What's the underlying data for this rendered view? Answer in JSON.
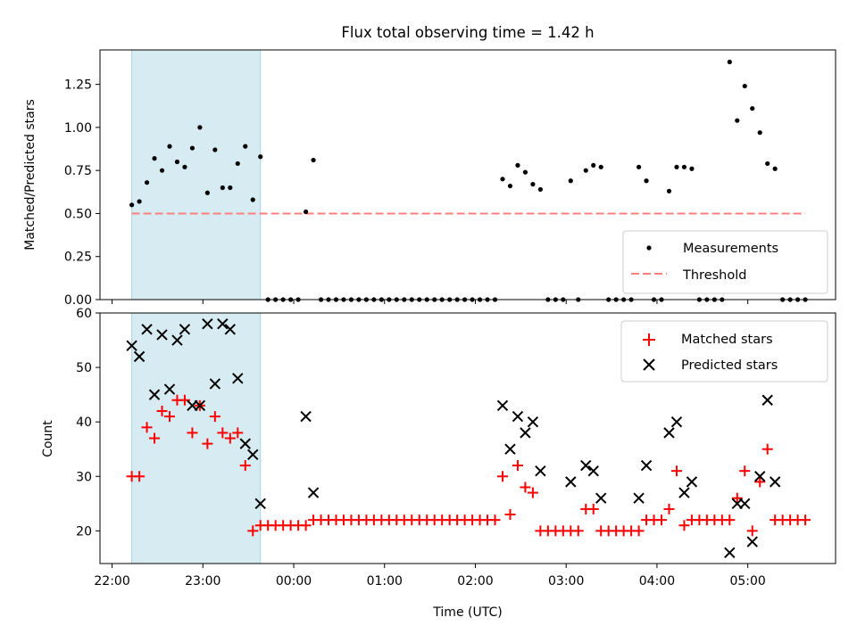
{
  "chart_data": [
    {
      "type": "scatter",
      "title": "Flux total observing time = 1.42 h",
      "ylabel": "Matched/Predicted stars",
      "xlim": [
        "21:52",
        "05:58"
      ],
      "ylim": [
        0,
        1.45
      ],
      "yticks": [
        "0.00",
        "0.25",
        "0.50",
        "0.75",
        "1.00",
        "1.25"
      ],
      "shaded_interval": [
        "22:13",
        "23:38"
      ],
      "shade_color": "#add8e6",
      "legend_placement": "lower-right",
      "series": [
        {
          "name": "Measurements",
          "marker": "dot",
          "color": "#000000",
          "points": [
            [
              "22:13",
              0.55
            ],
            [
              "22:18",
              0.57
            ],
            [
              "22:23",
              0.68
            ],
            [
              "22:28",
              0.82
            ],
            [
              "22:33",
              0.75
            ],
            [
              "22:38",
              0.89
            ],
            [
              "22:43",
              0.8
            ],
            [
              "22:48",
              0.77
            ],
            [
              "22:53",
              0.88
            ],
            [
              "22:58",
              1.0
            ],
            [
              "23:03",
              0.62
            ],
            [
              "23:08",
              0.87
            ],
            [
              "23:13",
              0.65
            ],
            [
              "23:18",
              0.65
            ],
            [
              "23:23",
              0.79
            ],
            [
              "23:28",
              0.89
            ],
            [
              "23:33",
              0.58
            ],
            [
              "23:38",
              0.83
            ],
            [
              "23:43",
              0.0
            ],
            [
              "23:48",
              0.0
            ],
            [
              "23:53",
              0.0
            ],
            [
              "23:58",
              0.0
            ],
            [
              "00:03",
              0.0
            ],
            [
              "00:08",
              0.51
            ],
            [
              "00:13",
              0.81
            ],
            [
              "00:18",
              0.0
            ],
            [
              "00:23",
              0.0
            ],
            [
              "00:28",
              0.0
            ],
            [
              "00:33",
              0.0
            ],
            [
              "00:38",
              0.0
            ],
            [
              "00:43",
              0.0
            ],
            [
              "00:48",
              0.0
            ],
            [
              "00:53",
              0.0
            ],
            [
              "00:58",
              0.0
            ],
            [
              "01:03",
              0.0
            ],
            [
              "01:08",
              0.0
            ],
            [
              "01:13",
              0.0
            ],
            [
              "01:18",
              0.0
            ],
            [
              "01:23",
              0.0
            ],
            [
              "01:28",
              0.0
            ],
            [
              "01:33",
              0.0
            ],
            [
              "01:38",
              0.0
            ],
            [
              "01:43",
              0.0
            ],
            [
              "01:48",
              0.0
            ],
            [
              "01:53",
              0.0
            ],
            [
              "01:58",
              0.0
            ],
            [
              "02:03",
              0.0
            ],
            [
              "02:08",
              0.0
            ],
            [
              "02:13",
              0.0
            ],
            [
              "02:18",
              0.7
            ],
            [
              "02:23",
              0.66
            ],
            [
              "02:28",
              0.78
            ],
            [
              "02:33",
              0.74
            ],
            [
              "02:38",
              0.67
            ],
            [
              "02:43",
              0.64
            ],
            [
              "02:48",
              0.0
            ],
            [
              "02:53",
              0.0
            ],
            [
              "02:58",
              0.0
            ],
            [
              "03:03",
              0.69
            ],
            [
              "03:08",
              0.0
            ],
            [
              "03:13",
              0.75
            ],
            [
              "03:18",
              0.78
            ],
            [
              "03:23",
              0.77
            ],
            [
              "03:28",
              0.0
            ],
            [
              "03:33",
              0.0
            ],
            [
              "03:38",
              0.0
            ],
            [
              "03:43",
              0.0
            ],
            [
              "03:48",
              0.77
            ],
            [
              "03:53",
              0.69
            ],
            [
              "03:58",
              0.0
            ],
            [
              "04:03",
              0.0
            ],
            [
              "04:08",
              0.63
            ],
            [
              "04:13",
              0.77
            ],
            [
              "04:18",
              0.77
            ],
            [
              "04:23",
              0.76
            ],
            [
              "04:28",
              0.0
            ],
            [
              "04:33",
              0.0
            ],
            [
              "04:38",
              0.0
            ],
            [
              "04:43",
              0.0
            ],
            [
              "04:48",
              1.38
            ],
            [
              "04:53",
              1.04
            ],
            [
              "04:58",
              1.24
            ],
            [
              "05:03",
              1.11
            ],
            [
              "05:08",
              0.97
            ],
            [
              "05:13",
              0.79
            ],
            [
              "05:18",
              0.76
            ],
            [
              "05:23",
              0.0
            ],
            [
              "05:28",
              0.0
            ],
            [
              "05:33",
              0.0
            ],
            [
              "05:38",
              0.0
            ]
          ]
        },
        {
          "name": "Threshold",
          "marker": "dashed-line",
          "color": "#ff7f7f",
          "points": [
            [
              "22:13",
              0.5
            ],
            [
              "05:38",
              0.5
            ]
          ]
        }
      ]
    },
    {
      "type": "scatter",
      "xlabel": "Time (UTC)",
      "ylabel": "Count",
      "xlim": [
        "21:52",
        "05:58"
      ],
      "ylim": [
        14,
        60
      ],
      "yticks": [
        "20",
        "30",
        "40",
        "50",
        "60"
      ],
      "xticks": [
        "22:00",
        "23:00",
        "00:00",
        "01:00",
        "02:00",
        "03:00",
        "04:00",
        "05:00"
      ],
      "shaded_interval": [
        "22:13",
        "23:38"
      ],
      "shade_color": "#add8e6",
      "legend_placement": "upper-right",
      "series": [
        {
          "name": "Matched stars",
          "marker": "plus",
          "color": "#ff0000",
          "points": [
            [
              "22:13",
              30
            ],
            [
              "22:18",
              30
            ],
            [
              "22:23",
              39
            ],
            [
              "22:28",
              37
            ],
            [
              "22:33",
              42
            ],
            [
              "22:38",
              41
            ],
            [
              "22:43",
              44
            ],
            [
              "22:48",
              44
            ],
            [
              "22:53",
              38
            ],
            [
              "22:58",
              43
            ],
            [
              "23:03",
              36
            ],
            [
              "23:08",
              41
            ],
            [
              "23:13",
              38
            ],
            [
              "23:18",
              37
            ],
            [
              "23:23",
              38
            ],
            [
              "23:28",
              32
            ],
            [
              "23:33",
              20
            ],
            [
              "23:38",
              21
            ],
            [
              "23:43",
              21
            ],
            [
              "23:48",
              21
            ],
            [
              "23:53",
              21
            ],
            [
              "23:58",
              21
            ],
            [
              "00:03",
              21
            ],
            [
              "00:08",
              21
            ],
            [
              "00:13",
              22
            ],
            [
              "00:18",
              22
            ],
            [
              "00:23",
              22
            ],
            [
              "00:28",
              22
            ],
            [
              "00:33",
              22
            ],
            [
              "00:38",
              22
            ],
            [
              "00:43",
              22
            ],
            [
              "00:48",
              22
            ],
            [
              "00:53",
              22
            ],
            [
              "00:58",
              22
            ],
            [
              "01:03",
              22
            ],
            [
              "01:08",
              22
            ],
            [
              "01:13",
              22
            ],
            [
              "01:18",
              22
            ],
            [
              "01:23",
              22
            ],
            [
              "01:28",
              22
            ],
            [
              "01:33",
              22
            ],
            [
              "01:38",
              22
            ],
            [
              "01:43",
              22
            ],
            [
              "01:48",
              22
            ],
            [
              "01:53",
              22
            ],
            [
              "01:58",
              22
            ],
            [
              "02:03",
              22
            ],
            [
              "02:08",
              22
            ],
            [
              "02:13",
              22
            ],
            [
              "02:18",
              30
            ],
            [
              "02:23",
              23
            ],
            [
              "02:28",
              32
            ],
            [
              "02:33",
              28
            ],
            [
              "02:38",
              27
            ],
            [
              "02:43",
              20
            ],
            [
              "02:48",
              20
            ],
            [
              "02:53",
              20
            ],
            [
              "02:58",
              20
            ],
            [
              "03:03",
              20
            ],
            [
              "03:08",
              20
            ],
            [
              "03:13",
              24
            ],
            [
              "03:18",
              24
            ],
            [
              "03:23",
              20
            ],
            [
              "03:28",
              20
            ],
            [
              "03:33",
              20
            ],
            [
              "03:38",
              20
            ],
            [
              "03:43",
              20
            ],
            [
              "03:48",
              20
            ],
            [
              "03:53",
              22
            ],
            [
              "03:58",
              22
            ],
            [
              "04:03",
              22
            ],
            [
              "04:08",
              24
            ],
            [
              "04:13",
              31
            ],
            [
              "04:18",
              21
            ],
            [
              "04:23",
              22
            ],
            [
              "04:28",
              22
            ],
            [
              "04:33",
              22
            ],
            [
              "04:38",
              22
            ],
            [
              "04:43",
              22
            ],
            [
              "04:48",
              22
            ],
            [
              "04:53",
              26
            ],
            [
              "04:58",
              31
            ],
            [
              "05:03",
              20
            ],
            [
              "05:08",
              29
            ],
            [
              "05:13",
              35
            ],
            [
              "05:18",
              22
            ],
            [
              "05:23",
              22
            ],
            [
              "05:28",
              22
            ],
            [
              "05:33",
              22
            ],
            [
              "05:38",
              22
            ]
          ]
        },
        {
          "name": "Predicted stars",
          "marker": "x",
          "color": "#000000",
          "points": [
            [
              "22:13",
              54
            ],
            [
              "22:18",
              52
            ],
            [
              "22:23",
              57
            ],
            [
              "22:28",
              45
            ],
            [
              "22:33",
              56
            ],
            [
              "22:38",
              46
            ],
            [
              "22:43",
              55
            ],
            [
              "22:48",
              57
            ],
            [
              "22:53",
              43
            ],
            [
              "22:58",
              43
            ],
            [
              "23:03",
              58
            ],
            [
              "23:08",
              47
            ],
            [
              "23:13",
              58
            ],
            [
              "23:18",
              57
            ],
            [
              "23:23",
              48
            ],
            [
              "23:28",
              36
            ],
            [
              "23:33",
              34
            ],
            [
              "23:38",
              25
            ],
            [
              "00:08",
              41
            ],
            [
              "00:13",
              27
            ],
            [
              "02:18",
              43
            ],
            [
              "02:23",
              35
            ],
            [
              "02:28",
              41
            ],
            [
              "02:33",
              38
            ],
            [
              "02:38",
              40
            ],
            [
              "02:43",
              31
            ],
            [
              "03:03",
              29
            ],
            [
              "03:13",
              32
            ],
            [
              "03:18",
              31
            ],
            [
              "03:23",
              26
            ],
            [
              "03:48",
              26
            ],
            [
              "03:53",
              32
            ],
            [
              "04:08",
              38
            ],
            [
              "04:13",
              40
            ],
            [
              "04:18",
              27
            ],
            [
              "04:23",
              29
            ],
            [
              "04:48",
              16
            ],
            [
              "04:53",
              25
            ],
            [
              "04:58",
              25
            ],
            [
              "05:03",
              18
            ],
            [
              "05:08",
              30
            ],
            [
              "05:13",
              44
            ],
            [
              "05:18",
              29
            ]
          ]
        }
      ]
    }
  ]
}
